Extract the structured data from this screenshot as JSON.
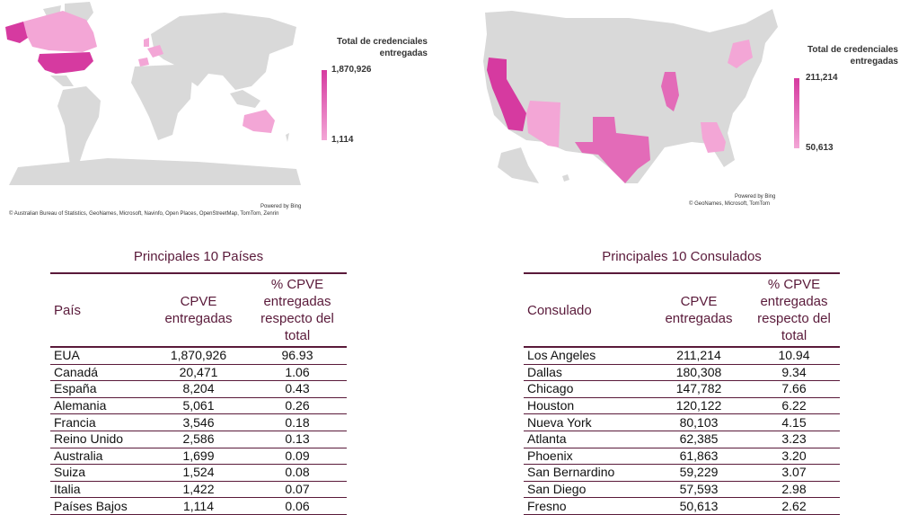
{
  "world_map": {
    "legend_title": "Total de credenciales entregadas",
    "legend_max": "1,870,926",
    "legend_min": "1,114",
    "powered_by": "Powered by Bing",
    "attribution": "© Australian Bureau of Statistics, GeoNames, Microsoft, Navinfo, Open Places, OpenStreetMap, TomTom, Zenrin",
    "colors": {
      "base": "#d9d9d9",
      "high": "#d63aa0",
      "mid": "#e97cc4",
      "low": "#f3a6d6"
    }
  },
  "us_map": {
    "legend_title": "Total de credenciales entregadas",
    "legend_max": "211,214",
    "legend_min": "50,613",
    "powered_by": "Powered by Bing",
    "attribution": "© GeoNames, Microsoft, TomTom",
    "colors": {
      "base": "#d9d9d9",
      "high": "#d63aa0",
      "mid": "#e36bb8",
      "low": "#f3a6d6"
    }
  },
  "countries_table": {
    "title": "Principales 10 Países",
    "headers": [
      "País",
      "CPVE entregadas",
      "% CPVE entregadas respecto del total"
    ],
    "rows": [
      [
        "EUA",
        "1,870,926",
        "96.93"
      ],
      [
        "Canadá",
        "20,471",
        "1.06"
      ],
      [
        "España",
        "8,204",
        "0.43"
      ],
      [
        "Alemania",
        "5,061",
        "0.26"
      ],
      [
        "Francia",
        "3,546",
        "0.18"
      ],
      [
        "Reino Unido",
        "2,586",
        "0.13"
      ],
      [
        "Australia",
        "1,699",
        "0.09"
      ],
      [
        "Suiza",
        "1,524",
        "0.08"
      ],
      [
        "Italia",
        "1,422",
        "0.07"
      ],
      [
        "Países Bajos",
        "1,114",
        "0.06"
      ]
    ]
  },
  "consulates_table": {
    "title": "Principales 10 Consulados",
    "headers": [
      "Consulado",
      "CPVE entregadas",
      "% CPVE entregadas respecto del total"
    ],
    "rows": [
      [
        "Los Angeles",
        "211,214",
        "10.94"
      ],
      [
        "Dallas",
        "180,308",
        "9.34"
      ],
      [
        "Chicago",
        "147,782",
        "7.66"
      ],
      [
        "Houston",
        "120,122",
        "6.22"
      ],
      [
        "Nueva York",
        "80,103",
        "4.15"
      ],
      [
        "Atlanta",
        "62,385",
        "3.23"
      ],
      [
        "Phoenix",
        "61,863",
        "3.20"
      ],
      [
        "San Bernardino",
        "59,229",
        "3.07"
      ],
      [
        "San Diego",
        "57,593",
        "2.98"
      ],
      [
        "Fresno",
        "50,613",
        "2.62"
      ]
    ]
  },
  "theme": {
    "accent": "#5a1a3a"
  }
}
